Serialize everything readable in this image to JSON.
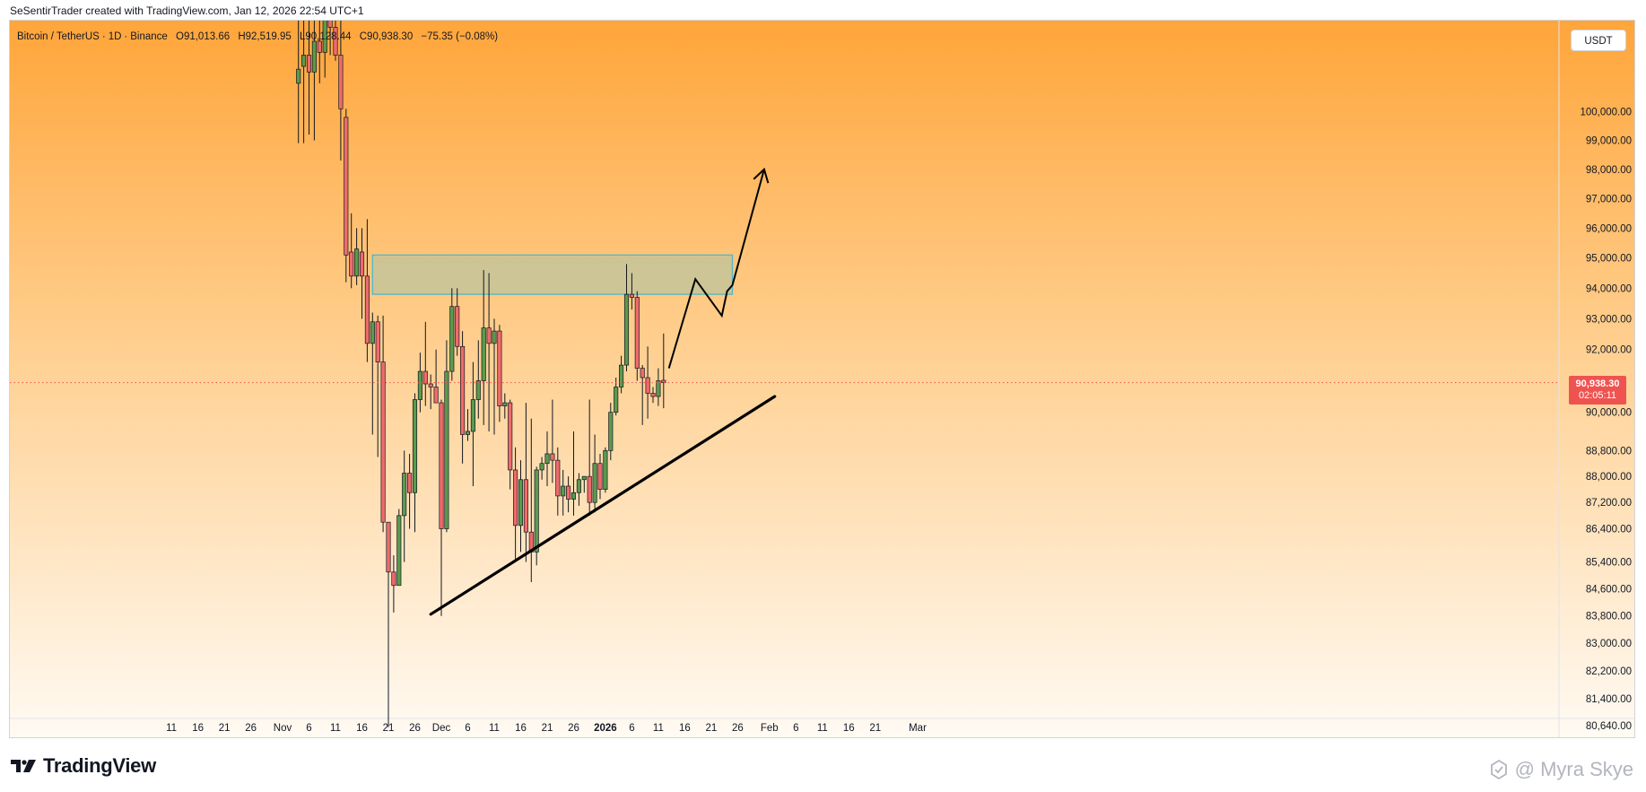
{
  "header": {
    "credit": "SeSentirTrader created with TradingView.com, Jan 12, 2026 22:54 UTC+1"
  },
  "legend": {
    "symbol": "Bitcoin / TetherUS",
    "interval": "1D",
    "exchange": "Binance",
    "open": "O91,013.66",
    "high": "H92,519.95",
    "low": "L90,128.44",
    "close": "C90,938.30",
    "change": "−75.35 (−0.08%)"
  },
  "currency_label": "USDT",
  "current_price": {
    "price": "90,938.30",
    "countdown": "02:05:11"
  },
  "footer": {
    "brand": "TradingView",
    "watermark": "@ Myra Skye"
  },
  "colors": {
    "bullish": "#5b9a4e",
    "bearish": "#ef6b6b",
    "wick": "#131722",
    "zone_fill": "#c4c49a",
    "zone_border": "#4fb7c9",
    "price_tag": "#ef5350",
    "gradient_top": "#ffa53a",
    "gradient_bottom": "#fffaf3"
  },
  "chart_data": {
    "type": "candlestick",
    "scale": "log",
    "ylim": [
      80640,
      101600
    ],
    "y_ticks": [
      100000,
      99000,
      98000,
      97000,
      96000,
      95000,
      94000,
      93000,
      92000,
      90000,
      88800,
      88000,
      87200,
      86400,
      85400,
      84600,
      83800,
      83000,
      82200,
      81400,
      80640
    ],
    "y_tick_labels": [
      "100,000.00",
      "99,000.00",
      "98,000.00",
      "97,000.00",
      "96,000.00",
      "95,000.00",
      "94,000.00",
      "93,000.00",
      "92,000.00",
      "90,000.00",
      "88,800.00",
      "88,000.00",
      "87,200.00",
      "86,400.00",
      "85,400.00",
      "84,600.00",
      "83,800.00",
      "83,000.00",
      "82,200.00",
      "81,400.00",
      "80,640.00"
    ],
    "x_ticks": [
      {
        "date": "2025-10-11",
        "label": "11",
        "bold": false
      },
      {
        "date": "2025-10-16",
        "label": "16",
        "bold": false
      },
      {
        "date": "2025-10-21",
        "label": "21",
        "bold": false
      },
      {
        "date": "2025-10-26",
        "label": "26",
        "bold": false
      },
      {
        "date": "2025-11-01",
        "label": "Nov",
        "bold": false
      },
      {
        "date": "2025-11-06",
        "label": "6",
        "bold": false
      },
      {
        "date": "2025-11-11",
        "label": "11",
        "bold": false
      },
      {
        "date": "2025-11-16",
        "label": "16",
        "bold": false
      },
      {
        "date": "2025-11-21",
        "label": "21",
        "bold": false
      },
      {
        "date": "2025-11-26",
        "label": "26",
        "bold": false
      },
      {
        "date": "2025-12-01",
        "label": "Dec",
        "bold": false
      },
      {
        "date": "2025-12-06",
        "label": "6",
        "bold": false
      },
      {
        "date": "2025-12-11",
        "label": "11",
        "bold": false
      },
      {
        "date": "2025-12-16",
        "label": "16",
        "bold": false
      },
      {
        "date": "2025-12-21",
        "label": "21",
        "bold": false
      },
      {
        "date": "2025-12-26",
        "label": "26",
        "bold": false
      },
      {
        "date": "2026-01-01",
        "label": "2026",
        "bold": true
      },
      {
        "date": "2026-01-06",
        "label": "6",
        "bold": false
      },
      {
        "date": "2026-01-11",
        "label": "11",
        "bold": false
      },
      {
        "date": "2026-01-16",
        "label": "16",
        "bold": false
      },
      {
        "date": "2026-01-21",
        "label": "21",
        "bold": false
      },
      {
        "date": "2026-01-26",
        "label": "26",
        "bold": false
      },
      {
        "date": "2026-02-01",
        "label": "Feb",
        "bold": false
      },
      {
        "date": "2026-02-06",
        "label": "6",
        "bold": false
      },
      {
        "date": "2026-02-11",
        "label": "11",
        "bold": false
      },
      {
        "date": "2026-02-16",
        "label": "16",
        "bold": false
      },
      {
        "date": "2026-02-21",
        "label": "21",
        "bold": false
      },
      {
        "date": "2026-03-01",
        "label": "Mar",
        "bold": false
      }
    ],
    "candles": [
      {
        "date": "2025-11-04",
        "o": 101000,
        "h": 104500,
        "l": 98900,
        "c": 101500
      },
      {
        "date": "2025-11-05",
        "o": 101600,
        "h": 104200,
        "l": 98900,
        "c": 102000
      },
      {
        "date": "2025-11-06",
        "o": 102000,
        "h": 104000,
        "l": 99200,
        "c": 101400
      },
      {
        "date": "2025-11-07",
        "o": 101400,
        "h": 104300,
        "l": 99000,
        "c": 102500
      },
      {
        "date": "2025-11-08",
        "o": 102500,
        "h": 103800,
        "l": 101000,
        "c": 102100
      },
      {
        "date": "2025-11-09",
        "o": 102100,
        "h": 104500,
        "l": 101200,
        "c": 104000
      },
      {
        "date": "2025-11-10",
        "o": 104000,
        "h": 106500,
        "l": 102000,
        "c": 103000
      },
      {
        "date": "2025-11-11",
        "o": 103000,
        "h": 105200,
        "l": 101800,
        "c": 102000
      },
      {
        "date": "2025-11-12",
        "o": 102000,
        "h": 104000,
        "l": 98300,
        "c": 100100
      },
      {
        "date": "2025-11-13",
        "o": 99800,
        "h": 100100,
        "l": 94200,
        "c": 95100
      },
      {
        "date": "2025-11-14",
        "o": 95200,
        "h": 96500,
        "l": 94000,
        "c": 94400
      },
      {
        "date": "2025-11-15",
        "o": 94400,
        "h": 96000,
        "l": 94100,
        "c": 95300
      },
      {
        "date": "2025-11-16",
        "o": 95200,
        "h": 96000,
        "l": 93000,
        "c": 94400
      },
      {
        "date": "2025-11-17",
        "o": 94400,
        "h": 96300,
        "l": 91600,
        "c": 92200
      },
      {
        "date": "2025-11-18",
        "o": 92200,
        "h": 93200,
        "l": 89300,
        "c": 92900
      },
      {
        "date": "2025-11-19",
        "o": 92900,
        "h": 93100,
        "l": 88600,
        "c": 91600
      },
      {
        "date": "2025-11-20",
        "o": 91600,
        "h": 93100,
        "l": 86300,
        "c": 86600
      },
      {
        "date": "2025-11-21",
        "o": 86600,
        "h": 86600,
        "l": 80600,
        "c": 85100
      },
      {
        "date": "2025-11-22",
        "o": 85100,
        "h": 85600,
        "l": 83900,
        "c": 84700
      },
      {
        "date": "2025-11-23",
        "o": 84700,
        "h": 87000,
        "l": 84700,
        "c": 86800
      },
      {
        "date": "2025-11-24",
        "o": 86800,
        "h": 88800,
        "l": 85400,
        "c": 88100
      },
      {
        "date": "2025-11-25",
        "o": 88100,
        "h": 88700,
        "l": 86400,
        "c": 87500
      },
      {
        "date": "2025-11-26",
        "o": 87500,
        "h": 90600,
        "l": 86300,
        "c": 90400
      },
      {
        "date": "2025-11-27",
        "o": 90400,
        "h": 91900,
        "l": 90000,
        "c": 91300
      },
      {
        "date": "2025-11-28",
        "o": 91300,
        "h": 92900,
        "l": 90200,
        "c": 90900
      },
      {
        "date": "2025-11-29",
        "o": 90900,
        "h": 91200,
        "l": 90100,
        "c": 90800
      },
      {
        "date": "2025-11-30",
        "o": 90800,
        "h": 92000,
        "l": 90400,
        "c": 90300
      },
      {
        "date": "2025-12-01",
        "o": 90300,
        "h": 90400,
        "l": 83800,
        "c": 86400
      },
      {
        "date": "2025-12-02",
        "o": 86400,
        "h": 92300,
        "l": 86300,
        "c": 91300
      },
      {
        "date": "2025-12-03",
        "o": 91300,
        "h": 94000,
        "l": 91000,
        "c": 93400
      },
      {
        "date": "2025-12-04",
        "o": 93400,
        "h": 94000,
        "l": 91800,
        "c": 92100
      },
      {
        "date": "2025-12-05",
        "o": 92100,
        "h": 92600,
        "l": 88400,
        "c": 89300
      },
      {
        "date": "2025-12-06",
        "o": 89300,
        "h": 90100,
        "l": 89100,
        "c": 89400
      },
      {
        "date": "2025-12-07",
        "o": 89400,
        "h": 91600,
        "l": 87700,
        "c": 90400
      },
      {
        "date": "2025-12-08",
        "o": 90400,
        "h": 92300,
        "l": 89800,
        "c": 91000
      },
      {
        "date": "2025-12-09",
        "o": 91000,
        "h": 94600,
        "l": 89600,
        "c": 92700
      },
      {
        "date": "2025-12-10",
        "o": 92700,
        "h": 94500,
        "l": 89400,
        "c": 92200
      },
      {
        "date": "2025-12-11",
        "o": 92200,
        "h": 93000,
        "l": 89300,
        "c": 92600
      },
      {
        "date": "2025-12-12",
        "o": 92600,
        "h": 92800,
        "l": 89700,
        "c": 90200
      },
      {
        "date": "2025-12-13",
        "o": 90200,
        "h": 90600,
        "l": 89800,
        "c": 90300
      },
      {
        "date": "2025-12-14",
        "o": 90300,
        "h": 90400,
        "l": 87600,
        "c": 88200
      },
      {
        "date": "2025-12-15",
        "o": 88200,
        "h": 88900,
        "l": 85400,
        "c": 86500
      },
      {
        "date": "2025-12-16",
        "o": 86500,
        "h": 88500,
        "l": 85700,
        "c": 87900
      },
      {
        "date": "2025-12-17",
        "o": 87900,
        "h": 90300,
        "l": 85400,
        "c": 86300
      },
      {
        "date": "2025-12-18",
        "o": 86300,
        "h": 89800,
        "l": 84800,
        "c": 85700
      },
      {
        "date": "2025-12-19",
        "o": 85700,
        "h": 88300,
        "l": 85300,
        "c": 88200
      },
      {
        "date": "2025-12-20",
        "o": 88200,
        "h": 88600,
        "l": 87900,
        "c": 88400
      },
      {
        "date": "2025-12-21",
        "o": 88400,
        "h": 89400,
        "l": 87700,
        "c": 88700
      },
      {
        "date": "2025-12-22",
        "o": 88700,
        "h": 90400,
        "l": 87800,
        "c": 88500
      },
      {
        "date": "2025-12-23",
        "o": 88500,
        "h": 88900,
        "l": 86800,
        "c": 87400
      },
      {
        "date": "2025-12-24",
        "o": 87400,
        "h": 88200,
        "l": 86800,
        "c": 87700
      },
      {
        "date": "2025-12-25",
        "o": 87700,
        "h": 88000,
        "l": 86900,
        "c": 87300
      },
      {
        "date": "2025-12-26",
        "o": 87300,
        "h": 89400,
        "l": 86800,
        "c": 87500
      },
      {
        "date": "2025-12-27",
        "o": 87500,
        "h": 88100,
        "l": 87100,
        "c": 87900
      },
      {
        "date": "2025-12-28",
        "o": 87900,
        "h": 88000,
        "l": 87500,
        "c": 88000
      },
      {
        "date": "2025-12-29",
        "o": 88000,
        "h": 90400,
        "l": 86800,
        "c": 87200
      },
      {
        "date": "2025-12-30",
        "o": 87200,
        "h": 89300,
        "l": 86900,
        "c": 88400
      },
      {
        "date": "2025-12-31",
        "o": 88400,
        "h": 88700,
        "l": 87300,
        "c": 87600
      },
      {
        "date": "2026-01-01",
        "o": 87600,
        "h": 88900,
        "l": 87500,
        "c": 88800
      },
      {
        "date": "2026-01-02",
        "o": 88800,
        "h": 90300,
        "l": 88500,
        "c": 90000
      },
      {
        "date": "2026-01-03",
        "o": 90000,
        "h": 91100,
        "l": 89900,
        "c": 90800
      },
      {
        "date": "2026-01-04",
        "o": 90800,
        "h": 91800,
        "l": 90600,
        "c": 91500
      },
      {
        "date": "2026-01-05",
        "o": 91500,
        "h": 94800,
        "l": 91300,
        "c": 93800
      },
      {
        "date": "2026-01-06",
        "o": 93800,
        "h": 94500,
        "l": 93300,
        "c": 93700
      },
      {
        "date": "2026-01-07",
        "o": 93700,
        "h": 93900,
        "l": 91000,
        "c": 91400
      },
      {
        "date": "2026-01-08",
        "o": 91400,
        "h": 91500,
        "l": 89600,
        "c": 91100
      },
      {
        "date": "2026-01-09",
        "o": 91100,
        "h": 92100,
        "l": 89800,
        "c": 90600
      },
      {
        "date": "2026-01-10",
        "o": 90600,
        "h": 90800,
        "l": 90300,
        "c": 90500
      },
      {
        "date": "2026-01-11",
        "o": 90500,
        "h": 91400,
        "l": 90200,
        "c": 91000
      },
      {
        "date": "2026-01-12",
        "o": 91013.66,
        "h": 92519.95,
        "l": 90128.44,
        "c": 90938.3
      }
    ],
    "resistance_zone": {
      "from": "2025-11-18",
      "to": "2026-01-25",
      "low": 93800,
      "high": 95100
    },
    "trendline": {
      "start": [
        "2025-11-29",
        83850
      ],
      "end": [
        "2026-02-02",
        90500
      ]
    },
    "projection_path": [
      [
        "2026-01-13",
        91400
      ],
      [
        "2026-01-18",
        94300
      ],
      [
        "2026-01-23",
        93100
      ],
      [
        "2026-01-24",
        93900
      ],
      [
        "2026-01-25",
        94100
      ],
      [
        "2026-01-31",
        98000
      ]
    ]
  }
}
